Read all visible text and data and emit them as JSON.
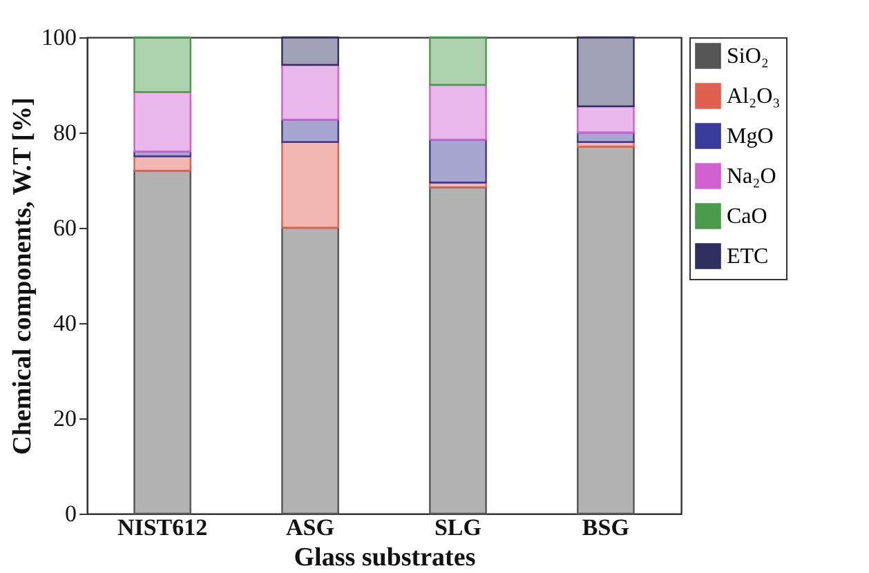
{
  "chart_data": {
    "type": "bar",
    "stacked": true,
    "xlabel": "Glass substrates",
    "ylabel": "Chemical components, W.T [%]",
    "categories": [
      "NIST612",
      "ASG",
      "SLG",
      "BSG"
    ],
    "series": [
      {
        "name": "SiO₂",
        "color": "#555555",
        "values": [
          72,
          60,
          68.5,
          77
        ]
      },
      {
        "name": "Al₂O₃",
        "color": "#e06050",
        "values": [
          3,
          18,
          1,
          1
        ]
      },
      {
        "name": "MgO",
        "color": "#3a3a9a",
        "values": [
          1,
          4.7,
          9,
          2
        ]
      },
      {
        "name": "Na₂O",
        "color": "#d060d0",
        "values": [
          12.5,
          11.5,
          11.5,
          5.5
        ]
      },
      {
        "name": "CaO",
        "color": "#4a9a4a",
        "values": [
          11.5,
          null,
          10,
          null
        ]
      },
      {
        "name": "ETC",
        "color": "#303060",
        "values": [
          null,
          5.8,
          null,
          14.5
        ]
      }
    ],
    "ylim": [
      0,
      100
    ],
    "yticks": [
      0,
      20,
      40,
      60,
      80,
      100
    ],
    "grid": false,
    "legend": "right"
  }
}
